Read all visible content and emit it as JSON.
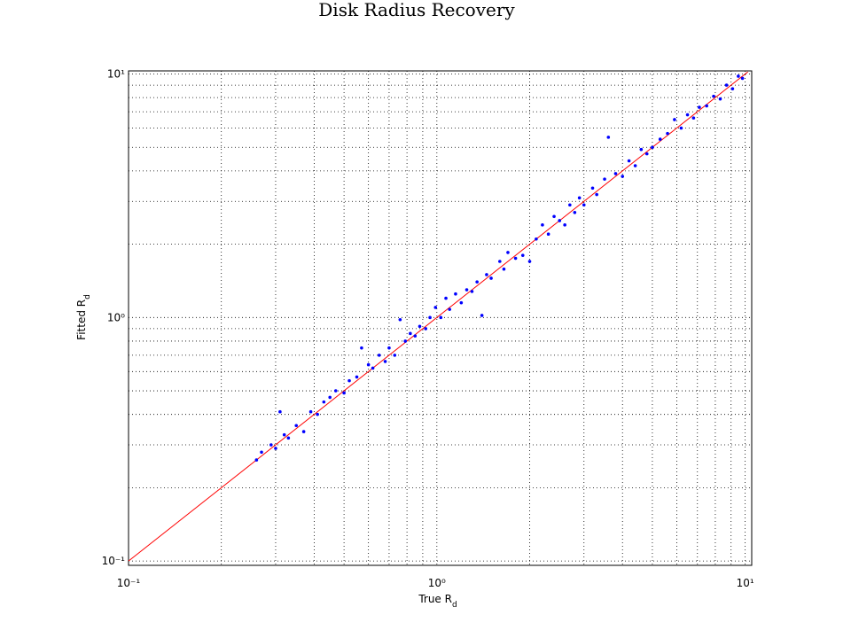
{
  "chart_data": {
    "type": "scatter",
    "title": "Disk Radius Recovery",
    "xlabel": {
      "text": "True R",
      "subscript": "d"
    },
    "ylabel": {
      "text": "Fitted R",
      "subscript": "d"
    },
    "log_x": true,
    "log_y": true,
    "grid": true,
    "xlim": [
      0.1,
      10.5
    ],
    "ylim": [
      0.096,
      10.3
    ],
    "xticks": [
      {
        "value": 0.1,
        "label": "10⁻¹"
      },
      {
        "value": 1,
        "label": "10⁰"
      },
      {
        "value": 10,
        "label": "10¹"
      }
    ],
    "yticks": [
      {
        "value": 0.1,
        "label": "10⁻¹"
      },
      {
        "value": 1,
        "label": "10⁰"
      },
      {
        "value": 10,
        "label": "10¹"
      }
    ],
    "xticks_minor": [
      0.2,
      0.3,
      0.4,
      0.5,
      0.6,
      0.7,
      0.8,
      0.9,
      2,
      3,
      4,
      5,
      6,
      7,
      8,
      9
    ],
    "yticks_minor": [
      0.2,
      0.3,
      0.4,
      0.5,
      0.6,
      0.7,
      0.8,
      0.9,
      2,
      3,
      4,
      5,
      6,
      7,
      8,
      9
    ],
    "series": [
      {
        "type": "line",
        "color": "#ff0000",
        "x": [
          0.1,
          10.2
        ],
        "values": [
          0.1,
          10.2
        ]
      },
      {
        "type": "scatter",
        "color": "#0000ff",
        "x": [
          0.26,
          0.27,
          0.29,
          0.3,
          0.31,
          0.32,
          0.33,
          0.35,
          0.37,
          0.39,
          0.41,
          0.43,
          0.45,
          0.47,
          0.5,
          0.52,
          0.55,
          0.57,
          0.6,
          0.62,
          0.65,
          0.68,
          0.7,
          0.73,
          0.76,
          0.79,
          0.82,
          0.85,
          0.88,
          0.92,
          0.95,
          0.99,
          1.03,
          1.07,
          1.1,
          1.15,
          1.2,
          1.25,
          1.3,
          1.35,
          1.4,
          1.45,
          1.5,
          1.6,
          1.65,
          1.7,
          1.8,
          1.9,
          2.0,
          2.1,
          2.2,
          2.3,
          2.4,
          2.5,
          2.6,
          2.7,
          2.8,
          2.9,
          3.0,
          3.2,
          3.3,
          3.5,
          3.6,
          3.8,
          4.0,
          4.2,
          4.4,
          4.6,
          4.8,
          5.0,
          5.3,
          5.6,
          5.9,
          6.2,
          6.5,
          6.8,
          7.1,
          7.5,
          7.9,
          8.3,
          8.7,
          9.1,
          9.5,
          9.8
        ],
        "values": [
          0.26,
          0.28,
          0.3,
          0.29,
          0.41,
          0.33,
          0.32,
          0.36,
          0.34,
          0.41,
          0.4,
          0.45,
          0.47,
          0.5,
          0.49,
          0.55,
          0.57,
          0.75,
          0.64,
          0.62,
          0.7,
          0.66,
          0.75,
          0.7,
          0.98,
          0.8,
          0.86,
          0.84,
          0.92,
          0.9,
          1.0,
          1.1,
          1.0,
          1.2,
          1.08,
          1.25,
          1.15,
          1.3,
          1.28,
          1.4,
          1.02,
          1.5,
          1.45,
          1.7,
          1.58,
          1.85,
          1.75,
          1.8,
          1.7,
          2.1,
          2.4,
          2.2,
          2.6,
          2.5,
          2.4,
          2.9,
          2.7,
          3.1,
          2.9,
          3.4,
          3.2,
          3.7,
          5.5,
          3.9,
          3.8,
          4.4,
          4.2,
          4.9,
          4.7,
          5.0,
          5.4,
          5.7,
          6.5,
          6.0,
          6.8,
          6.6,
          7.3,
          7.4,
          8.1,
          7.9,
          9.0,
          8.7,
          9.8,
          9.6
        ]
      }
    ]
  }
}
